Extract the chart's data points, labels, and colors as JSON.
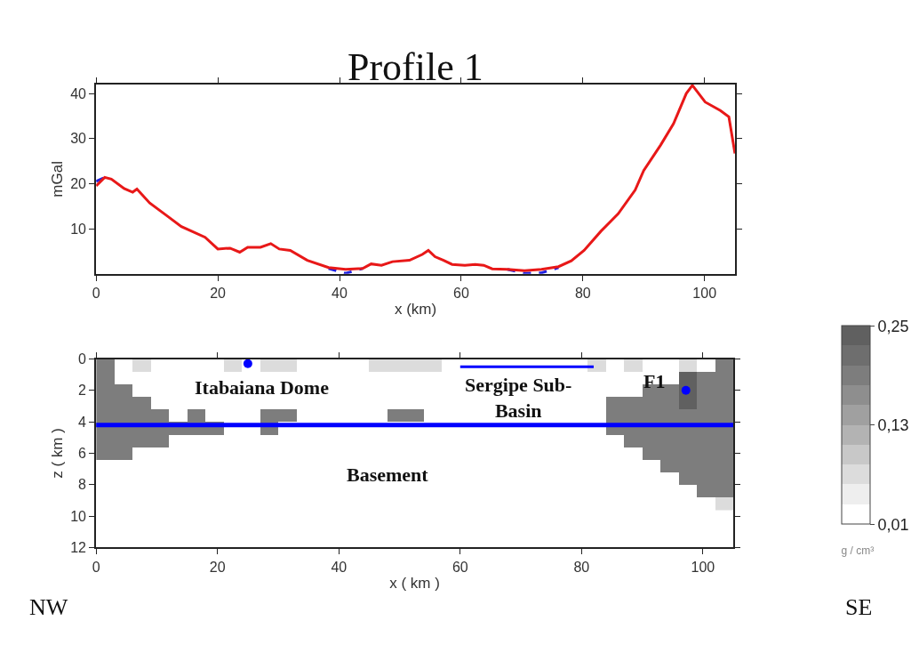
{
  "chart_data": [
    {
      "type": "line",
      "title": "Profile 1",
      "xlabel": "x (km)",
      "ylabel": "mGal",
      "xlim": [
        0,
        105
      ],
      "xticks": [
        0,
        20,
        40,
        60,
        80,
        100
      ],
      "ylim": [
        0,
        42
      ],
      "yticks": [
        10,
        20,
        30,
        40
      ],
      "marker": "none",
      "x": [
        0,
        1.4,
        2.5,
        4.6,
        6,
        6.7,
        8.8,
        11.6,
        14,
        17.9,
        20,
        22,
        23.6,
        24.9,
        27,
        28.7,
        30.1,
        31.9,
        34.7,
        38.2,
        41,
        43.8,
        45.2,
        46.9,
        48.7,
        51.5,
        53.6,
        54.6,
        55.7,
        57.1,
        58.5,
        60.6,
        62.3,
        63.7,
        65.1,
        67.6,
        70.4,
        73.2,
        76,
        78.1,
        80.2,
        83,
        85.8,
        88.6,
        90,
        92.8,
        94.9,
        97,
        98,
        100.1,
        102.6,
        104,
        105
      ],
      "series": [
        {
          "color": "#1f1fe0",
          "line_style": "dashed",
          "values": [
            20.5,
            21.4,
            null,
            null,
            null,
            null,
            null,
            null,
            null,
            null,
            null,
            null,
            null,
            null,
            null,
            null,
            null,
            null,
            null,
            1.2,
            0.1,
            1.2,
            null,
            null,
            null,
            null,
            null,
            null,
            null,
            null,
            null,
            null,
            null,
            null,
            null,
            1.0,
            0.1,
            0.2,
            1.4,
            null,
            null,
            null,
            null,
            null,
            null,
            null,
            null,
            null,
            null,
            null,
            null,
            null,
            null
          ]
        },
        {
          "color": "#e81818",
          "line_style": "solid",
          "values": [
            19.5,
            21.4,
            21,
            18.9,
            18.1,
            18.8,
            15.7,
            12.9,
            10.5,
            8.1,
            5.5,
            5.7,
            4.8,
            5.9,
            5.9,
            6.7,
            5.5,
            5.2,
            3.0,
            1.4,
            1.0,
            1.2,
            2.2,
            1.9,
            2.7,
            3.0,
            4.3,
            5.2,
            3.8,
            3.0,
            2.1,
            1.9,
            2.1,
            1.9,
            1.1,
            1.0,
            0.7,
            1.0,
            1.6,
            2.9,
            5.2,
            9.5,
            13.3,
            18.6,
            22.9,
            28.6,
            33.3,
            40,
            41.8,
            38.1,
            36.2,
            34.8,
            26.7
          ]
        }
      ]
    },
    {
      "type": "heatmap",
      "xlabel": "x ( km )",
      "ylabel": "z ( km )",
      "clabel": "g / cm³",
      "xlim": [
        0,
        105
      ],
      "xticks": [
        0,
        20,
        40,
        60,
        80,
        100
      ],
      "ylim": [
        12,
        0
      ],
      "yticks": [
        0,
        2,
        4,
        6,
        8,
        10,
        12
      ],
      "clim": [
        0.01,
        0.25
      ],
      "cticks": [
        {
          "value": 0.01,
          "label": "0,01"
        },
        {
          "value": 0.13,
          "label": "0,13"
        },
        {
          "value": 0.25,
          "label": "0,25"
        }
      ],
      "x": [
        1.5,
        4.5,
        7.5,
        10.5,
        13.5,
        16.5,
        19.5,
        22.5,
        25.5,
        28.5,
        31.5,
        34.5,
        37.5,
        40.5,
        43.5,
        46.5,
        49.5,
        52.5,
        55.5,
        58.5,
        61.5,
        64.5,
        67.5,
        70.5,
        73.5,
        76.5,
        79.5,
        82.5,
        85.5,
        88.5,
        91.5,
        94.5,
        97.5,
        100.5,
        103.5
      ],
      "y": [
        0.4,
        1.2,
        2.0,
        2.8,
        3.6,
        4.4,
        5.2,
        6.0,
        6.8,
        7.6,
        8.4,
        9.2
      ],
      "cells": [
        [
          0.19,
          null,
          0.07,
          null,
          null,
          null,
          null,
          0.07,
          null,
          0.07,
          0.07,
          null,
          null,
          null,
          null,
          0.07,
          0.07,
          0.07,
          0.07,
          null,
          null,
          null,
          null,
          null,
          null,
          null,
          null,
          0.07,
          null,
          0.07,
          null,
          null,
          0.07,
          null,
          0.19
        ],
        [
          0.19,
          null,
          null,
          null,
          null,
          null,
          null,
          null,
          null,
          null,
          null,
          null,
          null,
          null,
          null,
          null,
          null,
          null,
          null,
          null,
          null,
          null,
          null,
          null,
          null,
          null,
          null,
          null,
          null,
          null,
          null,
          null,
          0.23,
          0.19,
          0.19
        ],
        [
          0.19,
          0.19,
          null,
          null,
          null,
          null,
          null,
          null,
          null,
          null,
          null,
          null,
          null,
          null,
          null,
          null,
          null,
          null,
          null,
          null,
          null,
          null,
          null,
          null,
          null,
          null,
          null,
          null,
          null,
          null,
          0.19,
          0.19,
          0.23,
          0.19,
          0.19
        ],
        [
          0.19,
          0.19,
          0.19,
          null,
          null,
          null,
          null,
          null,
          null,
          null,
          null,
          null,
          null,
          null,
          null,
          null,
          null,
          null,
          null,
          null,
          null,
          null,
          null,
          null,
          null,
          null,
          null,
          null,
          0.19,
          0.19,
          0.19,
          0.19,
          0.23,
          0.19,
          0.19
        ],
        [
          0.19,
          0.19,
          0.19,
          0.19,
          null,
          0.19,
          null,
          null,
          null,
          0.19,
          0.19,
          null,
          null,
          null,
          null,
          null,
          0.19,
          0.19,
          null,
          null,
          null,
          null,
          null,
          null,
          null,
          null,
          null,
          null,
          0.19,
          0.19,
          0.19,
          0.19,
          0.19,
          0.19,
          0.19
        ],
        [
          0.19,
          0.19,
          0.19,
          0.19,
          0.19,
          0.19,
          0.19,
          null,
          null,
          0.19,
          null,
          null,
          null,
          null,
          null,
          null,
          null,
          null,
          null,
          null,
          null,
          null,
          null,
          null,
          null,
          null,
          null,
          null,
          0.19,
          0.19,
          0.19,
          0.19,
          0.19,
          0.19,
          0.19
        ],
        [
          0.19,
          0.19,
          0.19,
          0.19,
          null,
          null,
          null,
          null,
          null,
          null,
          null,
          null,
          null,
          null,
          null,
          null,
          null,
          null,
          null,
          null,
          null,
          null,
          null,
          null,
          null,
          null,
          null,
          null,
          null,
          0.19,
          0.19,
          0.19,
          0.19,
          0.19,
          0.19
        ],
        [
          0.19,
          0.19,
          null,
          null,
          null,
          null,
          null,
          null,
          null,
          null,
          null,
          null,
          null,
          null,
          null,
          null,
          null,
          null,
          null,
          null,
          null,
          null,
          null,
          null,
          null,
          null,
          null,
          null,
          null,
          null,
          0.19,
          0.19,
          0.19,
          0.19,
          0.19
        ],
        [
          null,
          null,
          null,
          null,
          null,
          null,
          null,
          null,
          null,
          null,
          null,
          null,
          null,
          null,
          null,
          null,
          null,
          null,
          null,
          null,
          null,
          null,
          null,
          null,
          null,
          null,
          null,
          null,
          null,
          null,
          null,
          0.19,
          0.19,
          0.19,
          0.19
        ],
        [
          null,
          null,
          null,
          null,
          null,
          null,
          null,
          null,
          null,
          null,
          null,
          null,
          null,
          null,
          null,
          null,
          null,
          null,
          null,
          null,
          null,
          null,
          null,
          null,
          null,
          null,
          null,
          null,
          null,
          null,
          null,
          null,
          0.19,
          0.19,
          0.19
        ],
        [
          null,
          null,
          null,
          null,
          null,
          null,
          null,
          null,
          null,
          null,
          null,
          null,
          null,
          null,
          null,
          null,
          null,
          null,
          null,
          null,
          null,
          null,
          null,
          null,
          null,
          null,
          null,
          null,
          null,
          null,
          null,
          null,
          null,
          0.19,
          0.19
        ],
        [
          null,
          null,
          null,
          null,
          null,
          null,
          null,
          null,
          null,
          null,
          null,
          null,
          null,
          null,
          null,
          null,
          null,
          null,
          null,
          null,
          null,
          null,
          null,
          null,
          null,
          null,
          null,
          null,
          null,
          null,
          null,
          null,
          null,
          null,
          0.07
        ]
      ],
      "series": [
        {
          "type": "line",
          "color": "#0000ff",
          "x": [
            60,
            82
          ],
          "values": [
            0.5,
            0.5
          ]
        },
        {
          "type": "scatter",
          "color": "#0000ff",
          "x": [
            25,
            97.2
          ],
          "values": [
            0.3,
            2.0
          ]
        }
      ],
      "ref_lines": [
        {
          "axis": "y",
          "value": 4.2,
          "color": "#0000ff"
        }
      ],
      "annotations": [
        "Itabaiana Dome",
        "Sergipe Sub-\nBasin",
        "F1",
        "Basement",
        "NW",
        "SE"
      ]
    }
  ]
}
